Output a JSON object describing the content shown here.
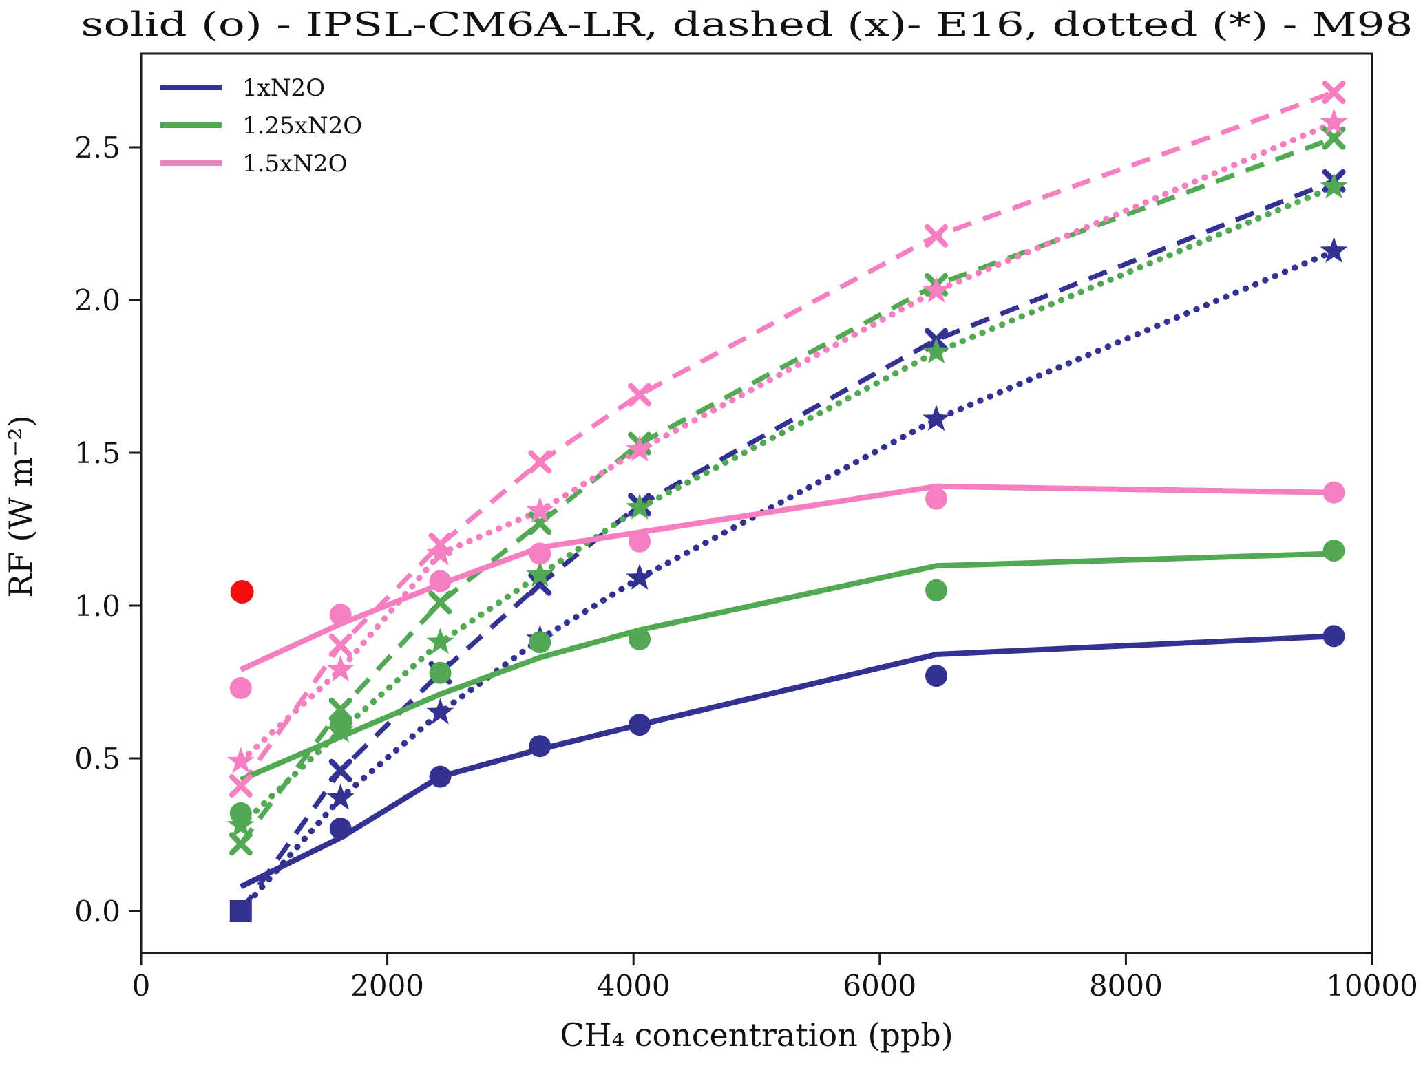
{
  "figure": {
    "background": "#ffffff",
    "frame_color": "#1a1a1a"
  },
  "chart_data": {
    "type": "line",
    "title": "solid (o) - IPSL-CM6A-LR, dashed (x)- E16, dotted (*) - M98",
    "xlabel": "CH₄ concentration (ppb)",
    "ylabel": "RF (W m⁻²)",
    "xlim": [
      0,
      10000
    ],
    "ylim": [
      -0.14,
      2.81
    ],
    "grid": false,
    "legend_position": "upper-left",
    "x_tick_values": [
      0,
      2000,
      4000,
      6000,
      8000,
      10000
    ],
    "x_tick_labels": [
      "0",
      "2000",
      "4000",
      "6000",
      "8000",
      "10000"
    ],
    "y_tick_values": [
      0,
      0.5,
      1.0,
      1.5,
      2.0,
      2.5
    ],
    "y_tick_labels": [
      "0.0",
      "0.5",
      "1.0",
      "1.5",
      "2.0",
      "2.5"
    ],
    "style_key": [
      {
        "style": "solid",
        "marker": "o",
        "label": "IPSL-CM6A-LR"
      },
      {
        "style": "dashed",
        "marker": "x",
        "label": "E16"
      },
      {
        "style": "dotted",
        "marker": "*",
        "label": "M98"
      }
    ],
    "x": [
      810,
      1620,
      2430,
      3240,
      4050,
      6460,
      9690
    ],
    "groups": [
      {
        "name": "1xN2O",
        "color": "#333191",
        "solid_line": [
          0.08,
          0.24,
          0.44,
          0.53,
          0.61,
          0.84,
          0.9
        ],
        "circles": [
          null,
          0.27,
          0.44,
          0.54,
          0.61,
          0.77,
          0.9
        ],
        "dashed_x": [
          0.0,
          0.46,
          0.78,
          1.07,
          1.33,
          1.87,
          2.39
        ],
        "dotted_star": [
          0.0,
          0.37,
          0.65,
          0.89,
          1.09,
          1.61,
          2.16
        ],
        "skip_first_marker": true
      },
      {
        "name": "1.25xN2O",
        "color": "#53a953",
        "solid_line": [
          0.43,
          0.57,
          0.71,
          0.83,
          0.92,
          1.13,
          1.17
        ],
        "circles": [
          0.32,
          0.61,
          0.78,
          0.88,
          0.89,
          1.05,
          1.18
        ],
        "dashed_x": [
          0.22,
          0.66,
          1.01,
          1.27,
          1.53,
          2.05,
          2.53
        ],
        "dotted_star": [
          0.28,
          0.59,
          0.88,
          1.1,
          1.32,
          1.83,
          2.37
        ],
        "skip_first_marker": false
      },
      {
        "name": "1.5xN2O",
        "color": "#f57fc1",
        "solid_line": [
          0.79,
          0.94,
          1.07,
          1.19,
          1.24,
          1.39,
          1.37
        ],
        "circles": [
          0.73,
          0.97,
          1.08,
          1.17,
          1.21,
          1.35,
          1.37
        ],
        "dashed_x": [
          0.41,
          0.87,
          1.2,
          1.47,
          1.69,
          2.21,
          2.68
        ],
        "dotted_star": [
          0.49,
          0.79,
          1.17,
          1.31,
          1.51,
          2.03,
          2.58
        ],
        "skip_first_marker": false
      }
    ],
    "extra_points": [
      {
        "name": "red-dot",
        "x": 820,
        "y": 1.045,
        "marker": "circle",
        "color": "#f40f0f"
      },
      {
        "name": "navy-zero-square",
        "x": 810,
        "y": 0.0,
        "marker": "square",
        "color": "#333191"
      }
    ],
    "legend": {
      "items": [
        {
          "label": "1xN2O",
          "color": "#333191"
        },
        {
          "label": "1.25xN2O",
          "color": "#53a953"
        },
        {
          "label": "1.5xN2O",
          "color": "#f57fc1"
        }
      ]
    }
  }
}
